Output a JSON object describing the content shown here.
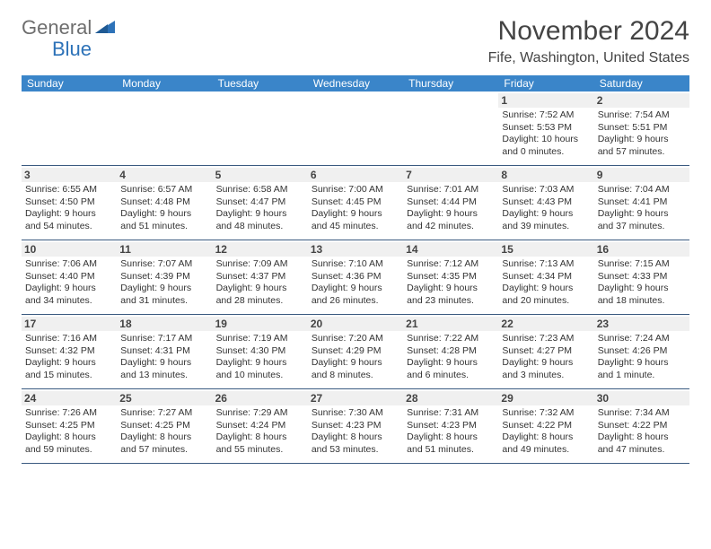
{
  "brand": {
    "name1": "General",
    "name2": "Blue"
  },
  "title": "November 2024",
  "location": "Fife, Washington, United States",
  "colors": {
    "header_bg": "#3a85c9",
    "header_text": "#ffffff",
    "line": "#3a5a80",
    "daynum_bg": "#f0f0f0"
  },
  "dow": [
    "Sunday",
    "Monday",
    "Tuesday",
    "Wednesday",
    "Thursday",
    "Friday",
    "Saturday"
  ],
  "weeks": [
    [
      {
        "n": "",
        "sr": "",
        "ss": "",
        "dl": ""
      },
      {
        "n": "",
        "sr": "",
        "ss": "",
        "dl": ""
      },
      {
        "n": "",
        "sr": "",
        "ss": "",
        "dl": ""
      },
      {
        "n": "",
        "sr": "",
        "ss": "",
        "dl": ""
      },
      {
        "n": "",
        "sr": "",
        "ss": "",
        "dl": ""
      },
      {
        "n": "1",
        "sr": "Sunrise: 7:52 AM",
        "ss": "Sunset: 5:53 PM",
        "dl": "Daylight: 10 hours and 0 minutes."
      },
      {
        "n": "2",
        "sr": "Sunrise: 7:54 AM",
        "ss": "Sunset: 5:51 PM",
        "dl": "Daylight: 9 hours and 57 minutes."
      }
    ],
    [
      {
        "n": "3",
        "sr": "Sunrise: 6:55 AM",
        "ss": "Sunset: 4:50 PM",
        "dl": "Daylight: 9 hours and 54 minutes."
      },
      {
        "n": "4",
        "sr": "Sunrise: 6:57 AM",
        "ss": "Sunset: 4:48 PM",
        "dl": "Daylight: 9 hours and 51 minutes."
      },
      {
        "n": "5",
        "sr": "Sunrise: 6:58 AM",
        "ss": "Sunset: 4:47 PM",
        "dl": "Daylight: 9 hours and 48 minutes."
      },
      {
        "n": "6",
        "sr": "Sunrise: 7:00 AM",
        "ss": "Sunset: 4:45 PM",
        "dl": "Daylight: 9 hours and 45 minutes."
      },
      {
        "n": "7",
        "sr": "Sunrise: 7:01 AM",
        "ss": "Sunset: 4:44 PM",
        "dl": "Daylight: 9 hours and 42 minutes."
      },
      {
        "n": "8",
        "sr": "Sunrise: 7:03 AM",
        "ss": "Sunset: 4:43 PM",
        "dl": "Daylight: 9 hours and 39 minutes."
      },
      {
        "n": "9",
        "sr": "Sunrise: 7:04 AM",
        "ss": "Sunset: 4:41 PM",
        "dl": "Daylight: 9 hours and 37 minutes."
      }
    ],
    [
      {
        "n": "10",
        "sr": "Sunrise: 7:06 AM",
        "ss": "Sunset: 4:40 PM",
        "dl": "Daylight: 9 hours and 34 minutes."
      },
      {
        "n": "11",
        "sr": "Sunrise: 7:07 AM",
        "ss": "Sunset: 4:39 PM",
        "dl": "Daylight: 9 hours and 31 minutes."
      },
      {
        "n": "12",
        "sr": "Sunrise: 7:09 AM",
        "ss": "Sunset: 4:37 PM",
        "dl": "Daylight: 9 hours and 28 minutes."
      },
      {
        "n": "13",
        "sr": "Sunrise: 7:10 AM",
        "ss": "Sunset: 4:36 PM",
        "dl": "Daylight: 9 hours and 26 minutes."
      },
      {
        "n": "14",
        "sr": "Sunrise: 7:12 AM",
        "ss": "Sunset: 4:35 PM",
        "dl": "Daylight: 9 hours and 23 minutes."
      },
      {
        "n": "15",
        "sr": "Sunrise: 7:13 AM",
        "ss": "Sunset: 4:34 PM",
        "dl": "Daylight: 9 hours and 20 minutes."
      },
      {
        "n": "16",
        "sr": "Sunrise: 7:15 AM",
        "ss": "Sunset: 4:33 PM",
        "dl": "Daylight: 9 hours and 18 minutes."
      }
    ],
    [
      {
        "n": "17",
        "sr": "Sunrise: 7:16 AM",
        "ss": "Sunset: 4:32 PM",
        "dl": "Daylight: 9 hours and 15 minutes."
      },
      {
        "n": "18",
        "sr": "Sunrise: 7:17 AM",
        "ss": "Sunset: 4:31 PM",
        "dl": "Daylight: 9 hours and 13 minutes."
      },
      {
        "n": "19",
        "sr": "Sunrise: 7:19 AM",
        "ss": "Sunset: 4:30 PM",
        "dl": "Daylight: 9 hours and 10 minutes."
      },
      {
        "n": "20",
        "sr": "Sunrise: 7:20 AM",
        "ss": "Sunset: 4:29 PM",
        "dl": "Daylight: 9 hours and 8 minutes."
      },
      {
        "n": "21",
        "sr": "Sunrise: 7:22 AM",
        "ss": "Sunset: 4:28 PM",
        "dl": "Daylight: 9 hours and 6 minutes."
      },
      {
        "n": "22",
        "sr": "Sunrise: 7:23 AM",
        "ss": "Sunset: 4:27 PM",
        "dl": "Daylight: 9 hours and 3 minutes."
      },
      {
        "n": "23",
        "sr": "Sunrise: 7:24 AM",
        "ss": "Sunset: 4:26 PM",
        "dl": "Daylight: 9 hours and 1 minute."
      }
    ],
    [
      {
        "n": "24",
        "sr": "Sunrise: 7:26 AM",
        "ss": "Sunset: 4:25 PM",
        "dl": "Daylight: 8 hours and 59 minutes."
      },
      {
        "n": "25",
        "sr": "Sunrise: 7:27 AM",
        "ss": "Sunset: 4:25 PM",
        "dl": "Daylight: 8 hours and 57 minutes."
      },
      {
        "n": "26",
        "sr": "Sunrise: 7:29 AM",
        "ss": "Sunset: 4:24 PM",
        "dl": "Daylight: 8 hours and 55 minutes."
      },
      {
        "n": "27",
        "sr": "Sunrise: 7:30 AM",
        "ss": "Sunset: 4:23 PM",
        "dl": "Daylight: 8 hours and 53 minutes."
      },
      {
        "n": "28",
        "sr": "Sunrise: 7:31 AM",
        "ss": "Sunset: 4:23 PM",
        "dl": "Daylight: 8 hours and 51 minutes."
      },
      {
        "n": "29",
        "sr": "Sunrise: 7:32 AM",
        "ss": "Sunset: 4:22 PM",
        "dl": "Daylight: 8 hours and 49 minutes."
      },
      {
        "n": "30",
        "sr": "Sunrise: 7:34 AM",
        "ss": "Sunset: 4:22 PM",
        "dl": "Daylight: 8 hours and 47 minutes."
      }
    ]
  ]
}
